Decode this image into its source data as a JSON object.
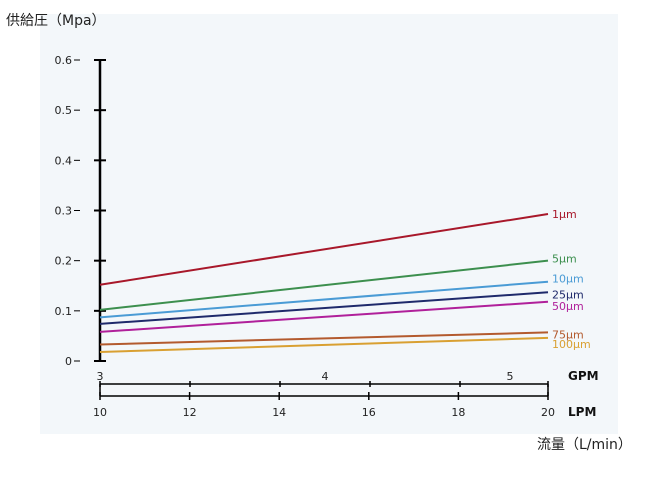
{
  "chart_data": {
    "type": "line",
    "title": "",
    "ylabel": "供給圧（Mpa）",
    "xlabel": "流量（L/min）",
    "ylim": [
      0,
      0.6
    ],
    "yticks": [
      "0",
      "0.1",
      "0.2",
      "0.3",
      "0.4",
      "0.5",
      "0.6"
    ],
    "xlim": [
      10,
      20
    ],
    "x_primary": {
      "unit": "LPM",
      "ticks": [
        "10",
        "12",
        "14",
        "16",
        "18",
        "20"
      ]
    },
    "x_secondary": {
      "unit": "GPM",
      "ticks": [
        "3",
        "4",
        "5"
      ]
    },
    "x": [
      10,
      20
    ],
    "series": [
      {
        "name": "1μm",
        "color": "#a8182a",
        "values": [
          0.152,
          0.293
        ]
      },
      {
        "name": "5μm",
        "color": "#3c8f4e",
        "values": [
          0.102,
          0.2
        ]
      },
      {
        "name": "10μm",
        "color": "#4a9bd5",
        "values": [
          0.087,
          0.158
        ]
      },
      {
        "name": "25μm",
        "color": "#1f2a6b",
        "values": [
          0.074,
          0.137
        ]
      },
      {
        "name": "50μm",
        "color": "#b0209a",
        "values": [
          0.058,
          0.118
        ]
      },
      {
        "name": "75μm",
        "color": "#b35a2e",
        "values": [
          0.033,
          0.057
        ]
      },
      {
        "name": "100μm",
        "color": "#d9a032",
        "values": [
          0.018,
          0.046
        ]
      }
    ]
  }
}
